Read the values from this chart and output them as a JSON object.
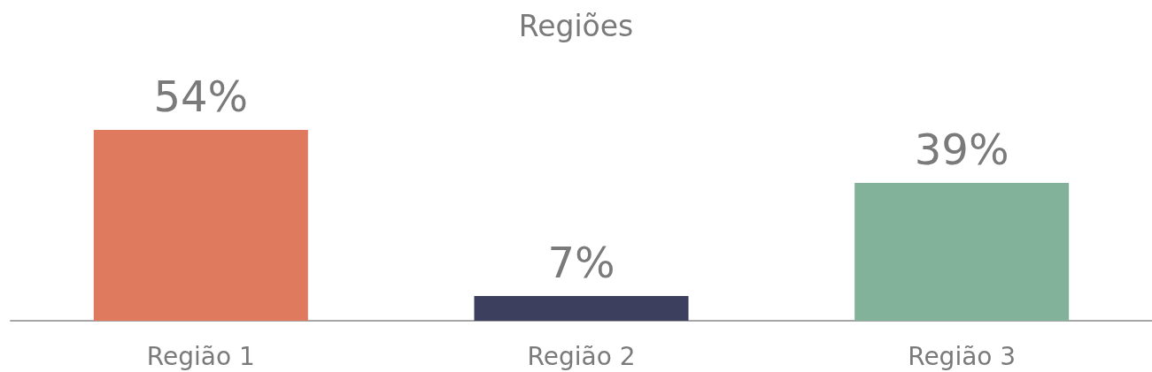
{
  "chart_data": {
    "type": "bar",
    "title": "Regiões",
    "categories": [
      "Região 1",
      "Região 2",
      "Região 3"
    ],
    "values": [
      54,
      7,
      39
    ],
    "colors": [
      "#df7a5e",
      "#3c405e",
      "#82b39a"
    ],
    "value_labels": [
      "54%",
      "7%",
      "39%"
    ]
  }
}
